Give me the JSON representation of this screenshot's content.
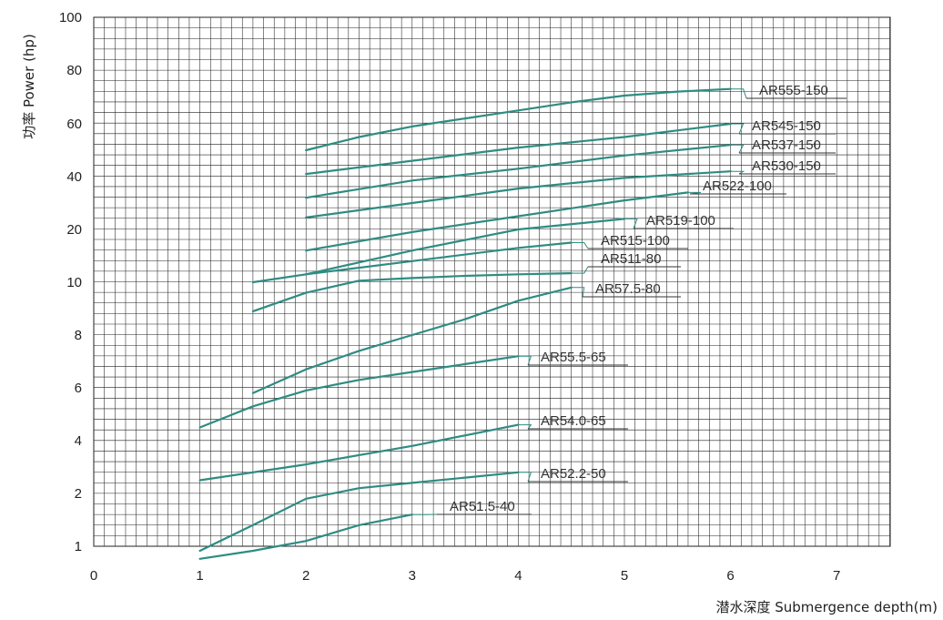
{
  "chart_data": {
    "type": "line",
    "title": "",
    "xlabel": "潜水深度 Submergence depth(m)",
    "ylabel": "功率 Power (hp)",
    "xlim": [
      0,
      7.5
    ],
    "y_ticks": [
      "1",
      "2",
      "4",
      "6",
      "8",
      "10",
      "20",
      "40",
      "60",
      "80",
      "100"
    ],
    "x_ticks": [
      "0",
      "1",
      "2",
      "3",
      "4",
      "5",
      "6",
      "7"
    ],
    "grid": true,
    "line_color": "#2e8c82",
    "series": [
      {
        "name": "AR555-150",
        "x": [
          2,
          2.5,
          3,
          3.5,
          4,
          4.5,
          5,
          5.5,
          6
        ],
        "y": [
          50,
          55,
          59,
          62,
          65,
          68,
          70.5,
          72,
          73
        ]
      },
      {
        "name": "AR545-150",
        "x": [
          2,
          3,
          4,
          5,
          6
        ],
        "y": [
          41,
          46,
          51,
          55,
          60
        ]
      },
      {
        "name": "AR537-150",
        "x": [
          2,
          3,
          4,
          5,
          6
        ],
        "y": [
          32,
          38.5,
          43,
          48,
          52
        ]
      },
      {
        "name": "AR530-150",
        "x": [
          2,
          3,
          4,
          5,
          6
        ],
        "y": [
          24.5,
          30,
          35.5,
          39.5,
          42
        ]
      },
      {
        "name": "AR522-100",
        "x": [
          2,
          3,
          4,
          5,
          5.6
        ],
        "y": [
          16,
          19.5,
          25,
          31,
          34
        ]
      },
      {
        "name": "AR519-100",
        "x": [
          2,
          3,
          4,
          5
        ],
        "y": [
          11.5,
          16,
          20,
          24
        ]
      },
      {
        "name": "AR515-100",
        "x": [
          1.5,
          2,
          3,
          4,
          4.5
        ],
        "y": [
          10,
          11.5,
          14,
          16.5,
          17.5
        ]
      },
      {
        "name": "AR511-80",
        "x": [
          1.5,
          2,
          2.5,
          3,
          3.5,
          4,
          4.5
        ],
        "y": [
          8.9,
          9.6,
          10.3,
          10.8,
          11.2,
          11.5,
          11.7
        ]
      },
      {
        "name": "AR57.5-80",
        "x": [
          1.5,
          2,
          2.5,
          3,
          3.5,
          4,
          4.5
        ],
        "y": [
          5.8,
          6.7,
          7.4,
          8.0,
          8.6,
          9.3,
          9.8
        ]
      },
      {
        "name": "AR55.5-65",
        "x": [
          1,
          1.5,
          2,
          2.5,
          3,
          3.5,
          4
        ],
        "y": [
          4.5,
          5.3,
          5.9,
          6.3,
          6.6,
          6.9,
          7.2
        ]
      },
      {
        "name": "AR54.0-65",
        "x": [
          1,
          2,
          3,
          4
        ],
        "y": [
          2.5,
          3.1,
          3.8,
          4.6
        ]
      },
      {
        "name": "AR52.2-50",
        "x": [
          1,
          1.5,
          2,
          2.5,
          3,
          3.5,
          4
        ],
        "y": [
          0.8,
          1.4,
          1.9,
          2.2,
          2.4,
          2.6,
          2.8
        ]
      },
      {
        "name": "AR51.5-40",
        "x": [
          1,
          1.5,
          2,
          2.5,
          3
        ],
        "y": [
          0.45,
          0.8,
          1.1,
          1.4,
          1.6
        ]
      }
    ]
  }
}
